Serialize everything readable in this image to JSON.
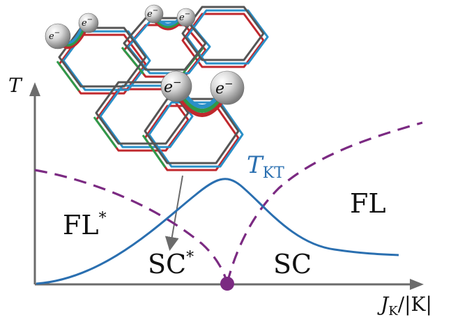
{
  "diagram": {
    "axes": {
      "y_label": "T",
      "x_label_main": "J",
      "x_label_sub": "K",
      "x_label_rest": "/|K|"
    },
    "crossover_label": {
      "main": "T",
      "sub": "KT"
    },
    "phases": {
      "fl_star": {
        "text": "FL",
        "sup": "*"
      },
      "sc_star": {
        "text": "SC",
        "sup": "*"
      },
      "sc": {
        "text": "SC"
      },
      "fl": {
        "text": "FL"
      }
    },
    "electron_symbol": {
      "main": "e",
      "sup": "−"
    }
  },
  "colors": {
    "crossover_curve": "#2a6fb0",
    "phase_boundary": "#7b2a82",
    "critical_point": "#7b2a82",
    "axis": "#6b6b6b",
    "lattice_gray": "#555555",
    "lattice_red": "#c0282d",
    "lattice_blue": "#2a90c8",
    "lattice_green": "#2e9a4a"
  }
}
